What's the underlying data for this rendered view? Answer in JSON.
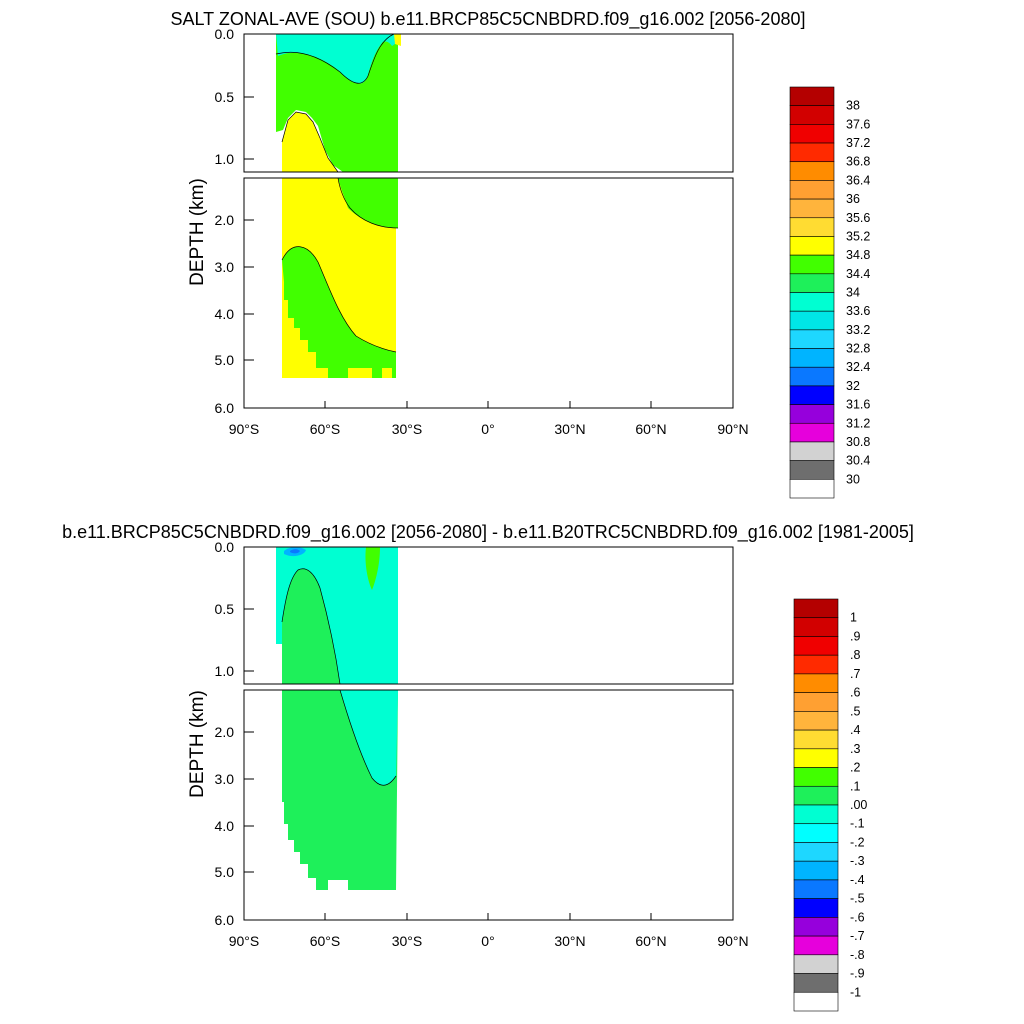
{
  "chart_data": [
    {
      "type": "heatmap",
      "title": "SALT ZONAL-AVE (SOU) b.e11.BRCP85C5CNBDRD.f09_g16.002 [2056-2080]",
      "ylabel": "DEPTH (km)",
      "x_ticks": [
        "90°S",
        "60°S",
        "30°S",
        "0°",
        "30°N",
        "60°N",
        "90°N"
      ],
      "xlim": [
        -90,
        90
      ],
      "y_ticks_upper": [
        "0.0",
        "0.5",
        "1.0"
      ],
      "y_ticks_lower": [
        "2.0",
        "3.0",
        "4.0",
        "5.0",
        "6.0"
      ],
      "ylim_upper": [
        0,
        1.1
      ],
      "ylim_lower": [
        1.1,
        6
      ],
      "grid": false,
      "legend": "colorbar right",
      "colorbar": {
        "labels": [
          "38",
          "37.6",
          "37.2",
          "36.8",
          "36.4",
          "36",
          "35.6",
          "35.2",
          "34.8",
          "34.4",
          "34",
          "33.6",
          "33.2",
          "32.8",
          "32.4",
          "32",
          "31.6",
          "31.2",
          "30.8",
          "30.4",
          "30"
        ],
        "colors": [
          "#b40000",
          "#d20000",
          "#f00000",
          "#ff2a00",
          "#ff8c00",
          "#ffa032",
          "#ffb43c",
          "#ffdc32",
          "#ffff00",
          "#41ff00",
          "#1ef05a",
          "#00ffd2",
          "#00e6e6",
          "#1ed7ff",
          "#00b4ff",
          "#0a78ff",
          "#0000ff",
          "#9600dc",
          "#e600dc",
          "#d2d2d2",
          "#6e6e6e",
          "#ffffff"
        ]
      },
      "fields": {
        "upper_fresh": {
          "value": "33.8",
          "color": "#00ffd2"
        },
        "intermediate": {
          "value": "34.6",
          "color": "#41ff00"
        },
        "deep": {
          "value": "34.9",
          "color": "#ffff00"
        },
        "bottom": {
          "value": "34.7",
          "color": "#41ff00"
        }
      }
    },
    {
      "type": "heatmap",
      "title": "b.e11.BRCP85C5CNBDRD.f09_g16.002 [2056-2080] - b.e11.B20TRC5CNBDRD.f09_g16.002 [1981-2005]",
      "ylabel": "DEPTH (km)",
      "x_ticks": [
        "90°S",
        "60°S",
        "30°S",
        "0°",
        "30°N",
        "60°N",
        "90°N"
      ],
      "xlim": [
        -90,
        90
      ],
      "y_ticks_upper": [
        "0.0",
        "0.5",
        "1.0"
      ],
      "y_ticks_lower": [
        "2.0",
        "3.0",
        "4.0",
        "5.0",
        "6.0"
      ],
      "ylim_upper": [
        0,
        1.1
      ],
      "ylim_lower": [
        1.1,
        6
      ],
      "grid": false,
      "legend": "colorbar right",
      "colorbar": {
        "labels": [
          "1",
          ".9",
          ".8",
          ".7",
          ".6",
          ".5",
          ".4",
          ".3",
          ".2",
          ".1",
          ".00",
          "-.1",
          "-.2",
          "-.3",
          "-.4",
          "-.5",
          "-.6",
          "-.7",
          "-.8",
          "-.9",
          "-1"
        ],
        "colors": [
          "#b40000",
          "#d20000",
          "#f00000",
          "#ff2a00",
          "#ff8c00",
          "#ffa032",
          "#ffb43c",
          "#ffdc32",
          "#ffff00",
          "#41ff00",
          "#1ef05a",
          "#00ffd2",
          "#00ffff",
          "#1ed7ff",
          "#00b4ff",
          "#0a78ff",
          "#0000ff",
          "#9600dc",
          "#e600dc",
          "#d2d2d2",
          "#6e6e6e",
          "#ffffff"
        ]
      },
      "fields": {
        "slight_positive": {
          "value": "0.05",
          "color": "#1ef05a"
        },
        "slight_negative": {
          "value": "-0.05",
          "color": "#00ffd2"
        },
        "positive_surface": {
          "value": "0.15",
          "color": "#41ff00"
        }
      }
    }
  ]
}
